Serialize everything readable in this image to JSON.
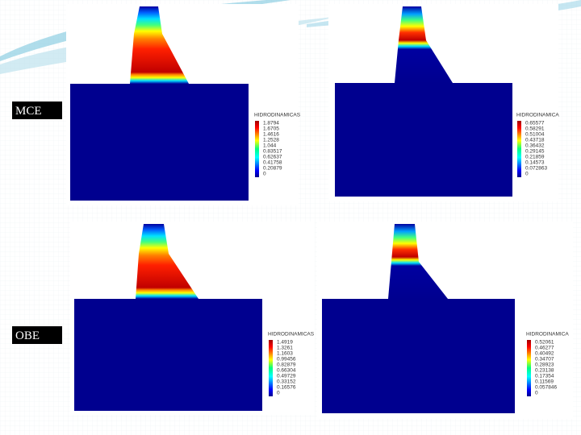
{
  "labels": {
    "mce": "MCE",
    "obe": "OBE"
  },
  "panels": [
    {
      "colorbar_title": "HIDRODINAMICAS",
      "colorbar_labels": [
        "1.8794",
        "1.6705",
        "1.4616",
        "1.2528",
        "1.044",
        "0.83517",
        "0.62637",
        "0.41758",
        "0.20879",
        "0"
      ]
    },
    {
      "colorbar_title": "HIDRODINAMICA",
      "colorbar_labels": [
        "0.65577",
        "0.58291",
        "0.51004",
        "0.43718",
        "0.36432",
        "0.29145",
        "0.21859",
        "0.14573",
        "0.072863",
        "0"
      ]
    },
    {
      "colorbar_title": "HIDRODINAMICAS",
      "colorbar_labels": [
        "1.4919",
        "1.3261",
        "1.1603",
        "0.99456",
        "0.82879",
        "0.66304",
        "0.49729",
        "0.33152",
        "0.16576",
        "0"
      ]
    },
    {
      "colorbar_title": "HIDRODINAMICA",
      "colorbar_labels": [
        "0.52061",
        "0.46277",
        "0.40492",
        "0.34707",
        "0.28923",
        "0.23138",
        "0.17354",
        "0.11569",
        "0.057846",
        "0"
      ]
    }
  ]
}
